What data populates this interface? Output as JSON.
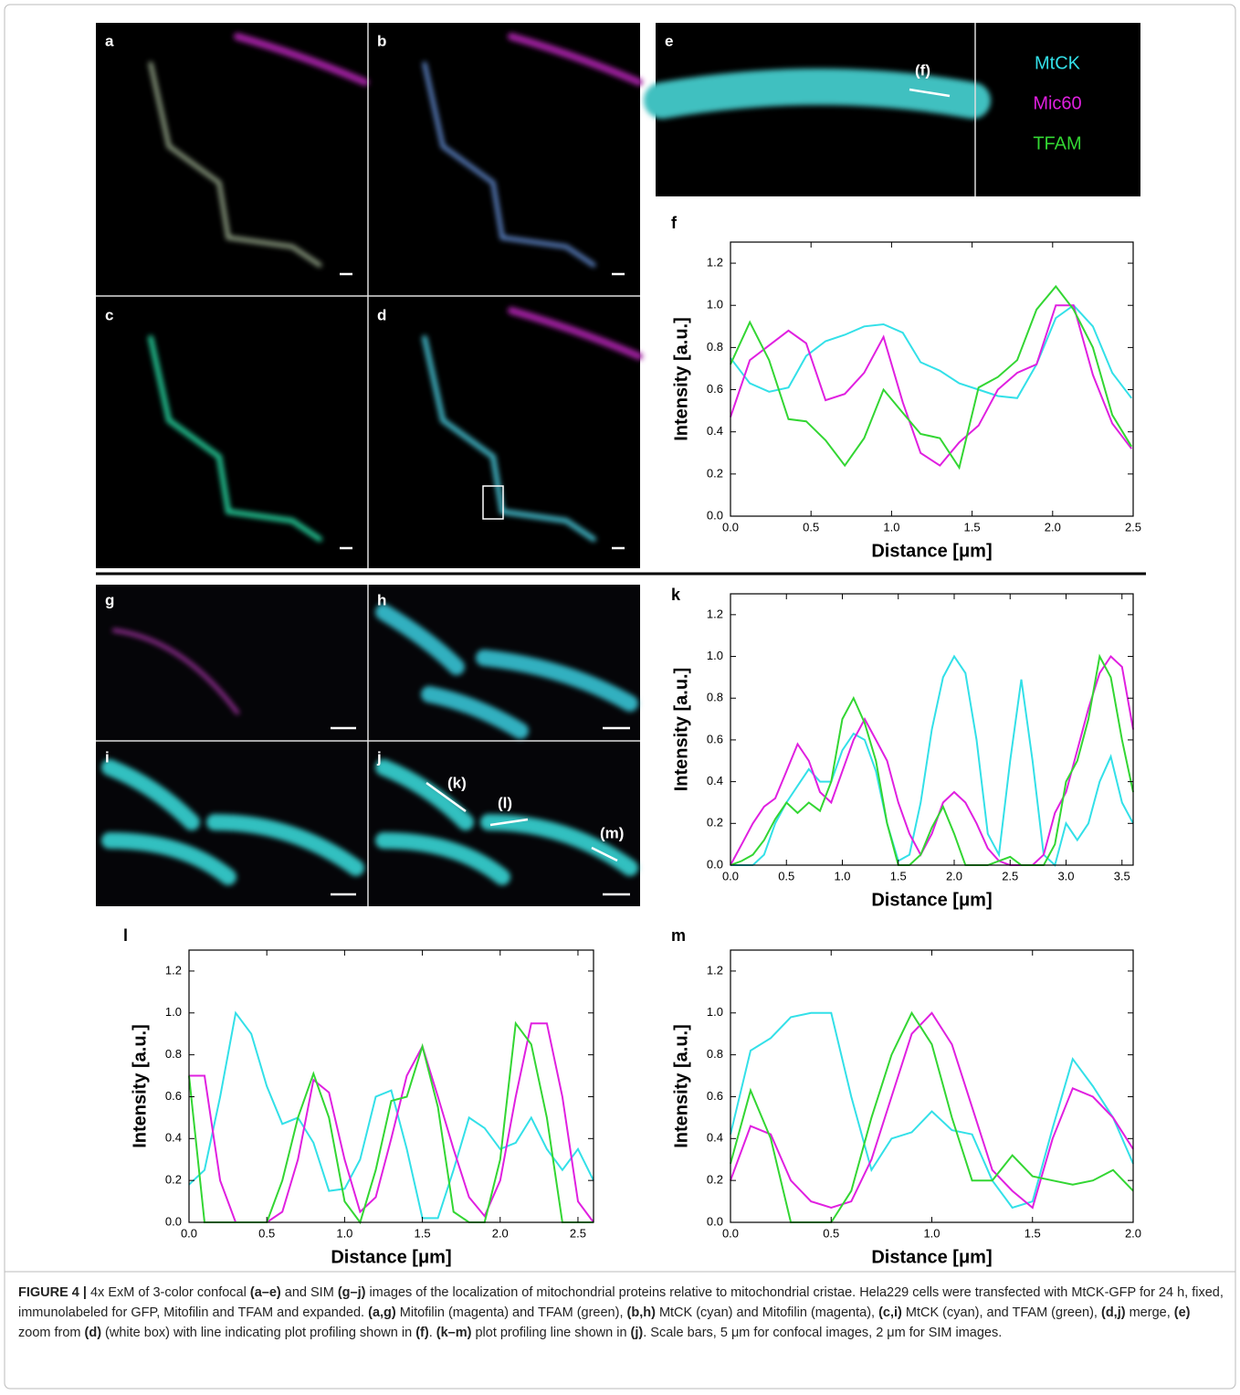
{
  "panels": [
    "a",
    "b",
    "c",
    "d",
    "e",
    "g",
    "h",
    "i",
    "j"
  ],
  "annotations": [
    "(f)",
    "(k)",
    "(l)",
    "(m)"
  ],
  "caption": [
    "FIGURE 4 |",
    " 4x ExM of 3-color confocal ",
    "(a–e)",
    " and SIM ",
    "(g–j)",
    " images of the localization of mitochondrial proteins relative to mitochondrial cristae. Hela229 cells were transfected with MtCK-GFP for 24 h, fixed, immunolabeled for GFP, Mitofilin and TFAM and expanded. ",
    "(a,g)",
    " Mitofilin (magenta) and TFAM (green), ",
    "(b,h)",
    " MtCK (cyan) and Mitofilin (magenta), ",
    "(c,i)",
    " MtCK (cyan), and TFAM (green), ",
    "(d,j)",
    " merge, ",
    "(e)",
    " zoom from ",
    "(d)",
    " (white box) with line indicating plot profiling shown in ",
    "(f)",
    ". ",
    "(k–m)",
    " plot profiling line shown in ",
    "(j)",
    ". Scale bars, 5 μm for confocal images, 2 μm for SIM images."
  ],
  "chart_data": [
    {
      "type": "line",
      "panel": "f",
      "xlabel": "Distance [μm]",
      "ylabel": "Intensity [a.u.]",
      "xlim": [
        0,
        2.5
      ],
      "ylim": [
        0,
        1.3
      ],
      "xticks": [
        {
          "value": 0,
          "label": "0.0"
        },
        {
          "value": 0.5,
          "label": "0.5"
        },
        {
          "value": 1,
          "label": "1.0"
        },
        {
          "value": 1.5,
          "label": "1.5"
        },
        {
          "value": 2,
          "label": "2.0"
        },
        {
          "value": 2.5,
          "label": "2.5"
        }
      ],
      "yticks": [
        {
          "value": 0,
          "label": "0.0"
        },
        {
          "value": 0.2,
          "label": "0.2"
        },
        {
          "value": 0.4,
          "label": "0.4"
        },
        {
          "value": 0.6,
          "label": "0.6"
        },
        {
          "value": 0.8,
          "label": "0.8"
        },
        {
          "value": 1,
          "label": "1.0"
        },
        {
          "value": 1.2,
          "label": "1.2"
        }
      ],
      "x": [
        0,
        0.12,
        0.24,
        0.36,
        0.47,
        0.59,
        0.71,
        0.83,
        0.95,
        1.07,
        1.18,
        1.3,
        1.42,
        1.54,
        1.66,
        1.78,
        1.9,
        2.02,
        2.13,
        2.25,
        2.37,
        2.49
      ],
      "series": [
        {
          "name": "MtCK",
          "color": "#33e0e8",
          "values": [
            0.75,
            0.63,
            0.59,
            0.61,
            0.76,
            0.83,
            0.86,
            0.9,
            0.91,
            0.87,
            0.73,
            0.69,
            0.63,
            0.6,
            0.57,
            0.56,
            0.72,
            0.94,
            1.0,
            0.9,
            0.68,
            0.56
          ]
        },
        {
          "name": "Mic60",
          "color": "#e020e0",
          "values": [
            0.47,
            0.74,
            0.81,
            0.88,
            0.82,
            0.55,
            0.58,
            0.68,
            0.85,
            0.54,
            0.3,
            0.24,
            0.35,
            0.43,
            0.6,
            0.68,
            0.72,
            1.0,
            1.0,
            0.67,
            0.44,
            0.32
          ]
        },
        {
          "name": "TFAM",
          "color": "#33d633",
          "values": [
            0.72,
            0.92,
            0.74,
            0.46,
            0.45,
            0.36,
            0.24,
            0.37,
            0.6,
            0.49,
            0.39,
            0.37,
            0.23,
            0.61,
            0.66,
            0.74,
            0.98,
            1.09,
            0.98,
            0.8,
            0.48,
            0.33
          ]
        }
      ]
    },
    {
      "type": "line",
      "panel": "k",
      "xlabel": "Distance [μm]",
      "ylabel": "Intensity [a.u.]",
      "xlim": [
        0,
        3.6
      ],
      "ylim": [
        0,
        1.3
      ],
      "xticks": [
        {
          "value": 0,
          "label": "0.0"
        },
        {
          "value": 0.5,
          "label": "0.5"
        },
        {
          "value": 1,
          "label": "1.0"
        },
        {
          "value": 1.5,
          "label": "1.5"
        },
        {
          "value": 2,
          "label": "2.0"
        },
        {
          "value": 2.5,
          "label": "2.5"
        },
        {
          "value": 3,
          "label": "3.0"
        },
        {
          "value": 3.5,
          "label": "3.5"
        }
      ],
      "yticks": [
        {
          "value": 0,
          "label": "0.0"
        },
        {
          "value": 0.2,
          "label": "0.2"
        },
        {
          "value": 0.4,
          "label": "0.4"
        },
        {
          "value": 0.6,
          "label": "0.6"
        },
        {
          "value": 0.8,
          "label": "0.8"
        },
        {
          "value": 1,
          "label": "1.0"
        },
        {
          "value": 1.2,
          "label": "1.2"
        }
      ],
      "x": [
        0,
        0.1,
        0.2,
        0.3,
        0.4,
        0.5,
        0.6,
        0.7,
        0.8,
        0.9,
        1,
        1.1,
        1.2,
        1.3,
        1.4,
        1.5,
        1.6,
        1.7,
        1.8,
        1.9,
        2,
        2.1,
        2.2,
        2.3,
        2.4,
        2.5,
        2.6,
        2.7,
        2.8,
        2.9,
        3,
        3.1,
        3.2,
        3.3,
        3.4,
        3.5,
        3.6
      ],
      "series": [
        {
          "color": "#33e0e8",
          "values": [
            0,
            0,
            0,
            0.05,
            0.2,
            0.3,
            0.38,
            0.46,
            0.4,
            0.4,
            0.55,
            0.63,
            0.6,
            0.45,
            0.2,
            0.02,
            0.05,
            0.3,
            0.65,
            0.9,
            1.0,
            0.92,
            0.6,
            0.15,
            0.05,
            0.5,
            0.89,
            0.5,
            0.05,
            0,
            0.2,
            0.12,
            0.2,
            0.4,
            0.52,
            0.3,
            0.2
          ]
        },
        {
          "color": "#e020e0",
          "values": [
            0,
            0.1,
            0.2,
            0.28,
            0.32,
            0.45,
            0.58,
            0.5,
            0.35,
            0.3,
            0.45,
            0.6,
            0.7,
            0.6,
            0.5,
            0.3,
            0.15,
            0.05,
            0.15,
            0.3,
            0.35,
            0.3,
            0.2,
            0.08,
            0.02,
            0,
            0,
            0,
            0.05,
            0.25,
            0.35,
            0.55,
            0.75,
            0.92,
            1.0,
            0.95,
            0.65
          ]
        },
        {
          "color": "#33d633",
          "values": [
            0,
            0.02,
            0.05,
            0.12,
            0.22,
            0.3,
            0.25,
            0.3,
            0.26,
            0.4,
            0.7,
            0.8,
            0.68,
            0.5,
            0.2,
            0,
            0,
            0.05,
            0.18,
            0.28,
            0.15,
            0,
            0,
            0,
            0.02,
            0.04,
            0,
            0,
            0,
            0.1,
            0.4,
            0.5,
            0.7,
            1.0,
            0.9,
            0.6,
            0.35
          ]
        }
      ]
    },
    {
      "type": "line",
      "panel": "l",
      "xlabel": "Distance [μm]",
      "ylabel": "Intensity [a.u.]",
      "xlim": [
        0,
        2.6
      ],
      "ylim": [
        0,
        1.3
      ],
      "xticks": [
        {
          "value": 0,
          "label": "0.0"
        },
        {
          "value": 0.5,
          "label": "0.5"
        },
        {
          "value": 1,
          "label": "1.0"
        },
        {
          "value": 1.5,
          "label": "1.5"
        },
        {
          "value": 2,
          "label": "2.0"
        },
        {
          "value": 2.5,
          "label": "2.5"
        }
      ],
      "yticks": [
        {
          "value": 0,
          "label": "0.0"
        },
        {
          "value": 0.2,
          "label": "0.2"
        },
        {
          "value": 0.4,
          "label": "0.4"
        },
        {
          "value": 0.6,
          "label": "0.6"
        },
        {
          "value": 0.8,
          "label": "0.8"
        },
        {
          "value": 1,
          "label": "1.0"
        },
        {
          "value": 1.2,
          "label": "1.2"
        }
      ],
      "x": [
        0,
        0.1,
        0.2,
        0.3,
        0.4,
        0.5,
        0.6,
        0.7,
        0.8,
        0.9,
        1,
        1.1,
        1.2,
        1.3,
        1.4,
        1.5,
        1.6,
        1.7,
        1.8,
        1.9,
        2,
        2.1,
        2.2,
        2.3,
        2.4,
        2.5,
        2.6
      ],
      "series": [
        {
          "color": "#33e0e8",
          "values": [
            0.18,
            0.25,
            0.6,
            1.0,
            0.9,
            0.65,
            0.47,
            0.5,
            0.38,
            0.15,
            0.16,
            0.3,
            0.6,
            0.63,
            0.35,
            0.02,
            0.02,
            0.25,
            0.5,
            0.45,
            0.35,
            0.38,
            0.5,
            0.35,
            0.25,
            0.35,
            0.2
          ]
        },
        {
          "color": "#e020e0",
          "values": [
            0.7,
            0.7,
            0.2,
            0,
            0,
            0,
            0.05,
            0.3,
            0.68,
            0.62,
            0.3,
            0.05,
            0.12,
            0.4,
            0.7,
            0.84,
            0.6,
            0.35,
            0.12,
            0.03,
            0.2,
            0.6,
            0.95,
            0.95,
            0.6,
            0.1,
            0
          ]
        },
        {
          "color": "#33d633",
          "values": [
            0.7,
            0,
            0,
            0,
            0,
            0,
            0.2,
            0.5,
            0.71,
            0.5,
            0.1,
            0,
            0.25,
            0.58,
            0.6,
            0.84,
            0.55,
            0.05,
            0,
            0,
            0.3,
            0.95,
            0.85,
            0.5,
            0,
            0,
            0
          ]
        }
      ]
    },
    {
      "type": "line",
      "panel": "m",
      "xlabel": "Distance [μm]",
      "ylabel": "Intensity [a.u.]",
      "xlim": [
        0,
        2
      ],
      "ylim": [
        0,
        1.3
      ],
      "xticks": [
        {
          "value": 0,
          "label": "0.0"
        },
        {
          "value": 0.5,
          "label": "0.5"
        },
        {
          "value": 1,
          "label": "1.0"
        },
        {
          "value": 1.5,
          "label": "1.5"
        },
        {
          "value": 2,
          "label": "2.0"
        }
      ],
      "yticks": [
        {
          "value": 0,
          "label": "0.0"
        },
        {
          "value": 0.2,
          "label": "0.2"
        },
        {
          "value": 0.4,
          "label": "0.4"
        },
        {
          "value": 0.6,
          "label": "0.6"
        },
        {
          "value": 0.8,
          "label": "0.8"
        },
        {
          "value": 1,
          "label": "1.0"
        },
        {
          "value": 1.2,
          "label": "1.2"
        }
      ],
      "x": [
        0,
        0.1,
        0.2,
        0.3,
        0.4,
        0.5,
        0.6,
        0.7,
        0.8,
        0.9,
        1,
        1.1,
        1.2,
        1.3,
        1.4,
        1.5,
        1.6,
        1.7,
        1.8,
        1.9,
        2
      ],
      "series": [
        {
          "color": "#33e0e8",
          "values": [
            0.42,
            0.82,
            0.88,
            0.98,
            1.0,
            1.0,
            0.6,
            0.25,
            0.4,
            0.43,
            0.53,
            0.44,
            0.42,
            0.2,
            0.07,
            0.1,
            0.45,
            0.78,
            0.65,
            0.5,
            0.28
          ]
        },
        {
          "color": "#e020e0",
          "values": [
            0.2,
            0.46,
            0.42,
            0.2,
            0.1,
            0.07,
            0.1,
            0.3,
            0.6,
            0.9,
            1.0,
            0.85,
            0.55,
            0.25,
            0.15,
            0.07,
            0.4,
            0.64,
            0.6,
            0.5,
            0.35
          ]
        },
        {
          "color": "#33d633",
          "values": [
            0.28,
            0.63,
            0.4,
            0,
            0,
            0,
            0.15,
            0.5,
            0.8,
            1.0,
            0.85,
            0.5,
            0.2,
            0.2,
            0.32,
            0.22,
            0.2,
            0.18,
            0.2,
            0.25,
            0.15
          ]
        }
      ]
    }
  ]
}
